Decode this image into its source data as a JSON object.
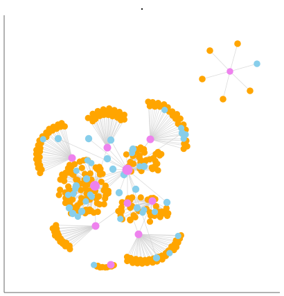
{
  "figure": {
    "title": "",
    "edge_color": "#cfcfcf",
    "axis_color": "#666666",
    "node_types": [
      {
        "type": "hub",
        "color": "#ee82ee"
      },
      {
        "type": "secondary",
        "color": "#87ceeb"
      },
      {
        "type": "leaf",
        "color": "#ffa500"
      }
    ]
  },
  "chart_data": {
    "type": "network",
    "description": "",
    "components": [
      {
        "name": "main_component",
        "hubs": 10,
        "approx_leaves": 360,
        "approx_secondary": 30
      },
      {
        "name": "small_star",
        "hubs": 1,
        "leaves_orange": 5,
        "leaves_blue": 1
      }
    ]
  }
}
